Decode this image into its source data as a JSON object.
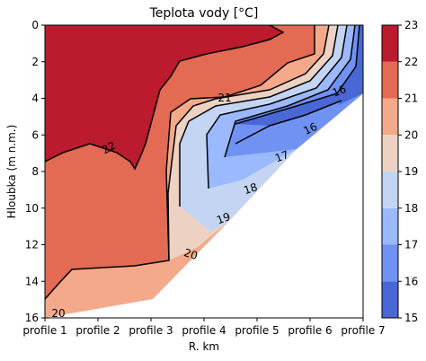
{
  "chart_data": {
    "type": "contourf",
    "title": "Teplota vody [°C]",
    "xlabel": "R. km",
    "ylabel": "Hloubka (m n.m.)",
    "x_ticks": [
      "profile 1",
      "profile 2",
      "profile 3",
      "profile 4",
      "profile 5",
      "profile 6",
      "profile 7"
    ],
    "x_range": [
      1,
      7
    ],
    "y_ticks": [
      "0",
      "2",
      "4",
      "6",
      "8",
      "10",
      "12",
      "14",
      "16"
    ],
    "y_range": [
      16,
      0
    ],
    "y_inverted": true,
    "colorbar_ticks": [
      "15",
      "16",
      "17",
      "18",
      "19",
      "20",
      "21",
      "22",
      "23"
    ],
    "colorbar_range": [
      15,
      23
    ],
    "levels": [
      {
        "min": 15,
        "max": 16,
        "color": "#4a67d6"
      },
      {
        "min": 16,
        "max": 17,
        "color": "#6f92f3"
      },
      {
        "min": 17,
        "max": 18,
        "color": "#9ab9ff"
      },
      {
        "min": 18,
        "max": 19,
        "color": "#c4d5f3"
      },
      {
        "min": 19,
        "max": 20,
        "color": "#edd2c4"
      },
      {
        "min": 20,
        "max": 21,
        "color": "#f5a98b"
      },
      {
        "min": 21,
        "max": 22,
        "color": "#e36a53"
      },
      {
        "min": 22,
        "max": 23,
        "color": "#bb1b2c"
      }
    ],
    "contour_labels": [
      "21",
      "22",
      "20",
      "16",
      "16",
      "17",
      "18",
      "19",
      "20"
    ],
    "grid": false
  }
}
